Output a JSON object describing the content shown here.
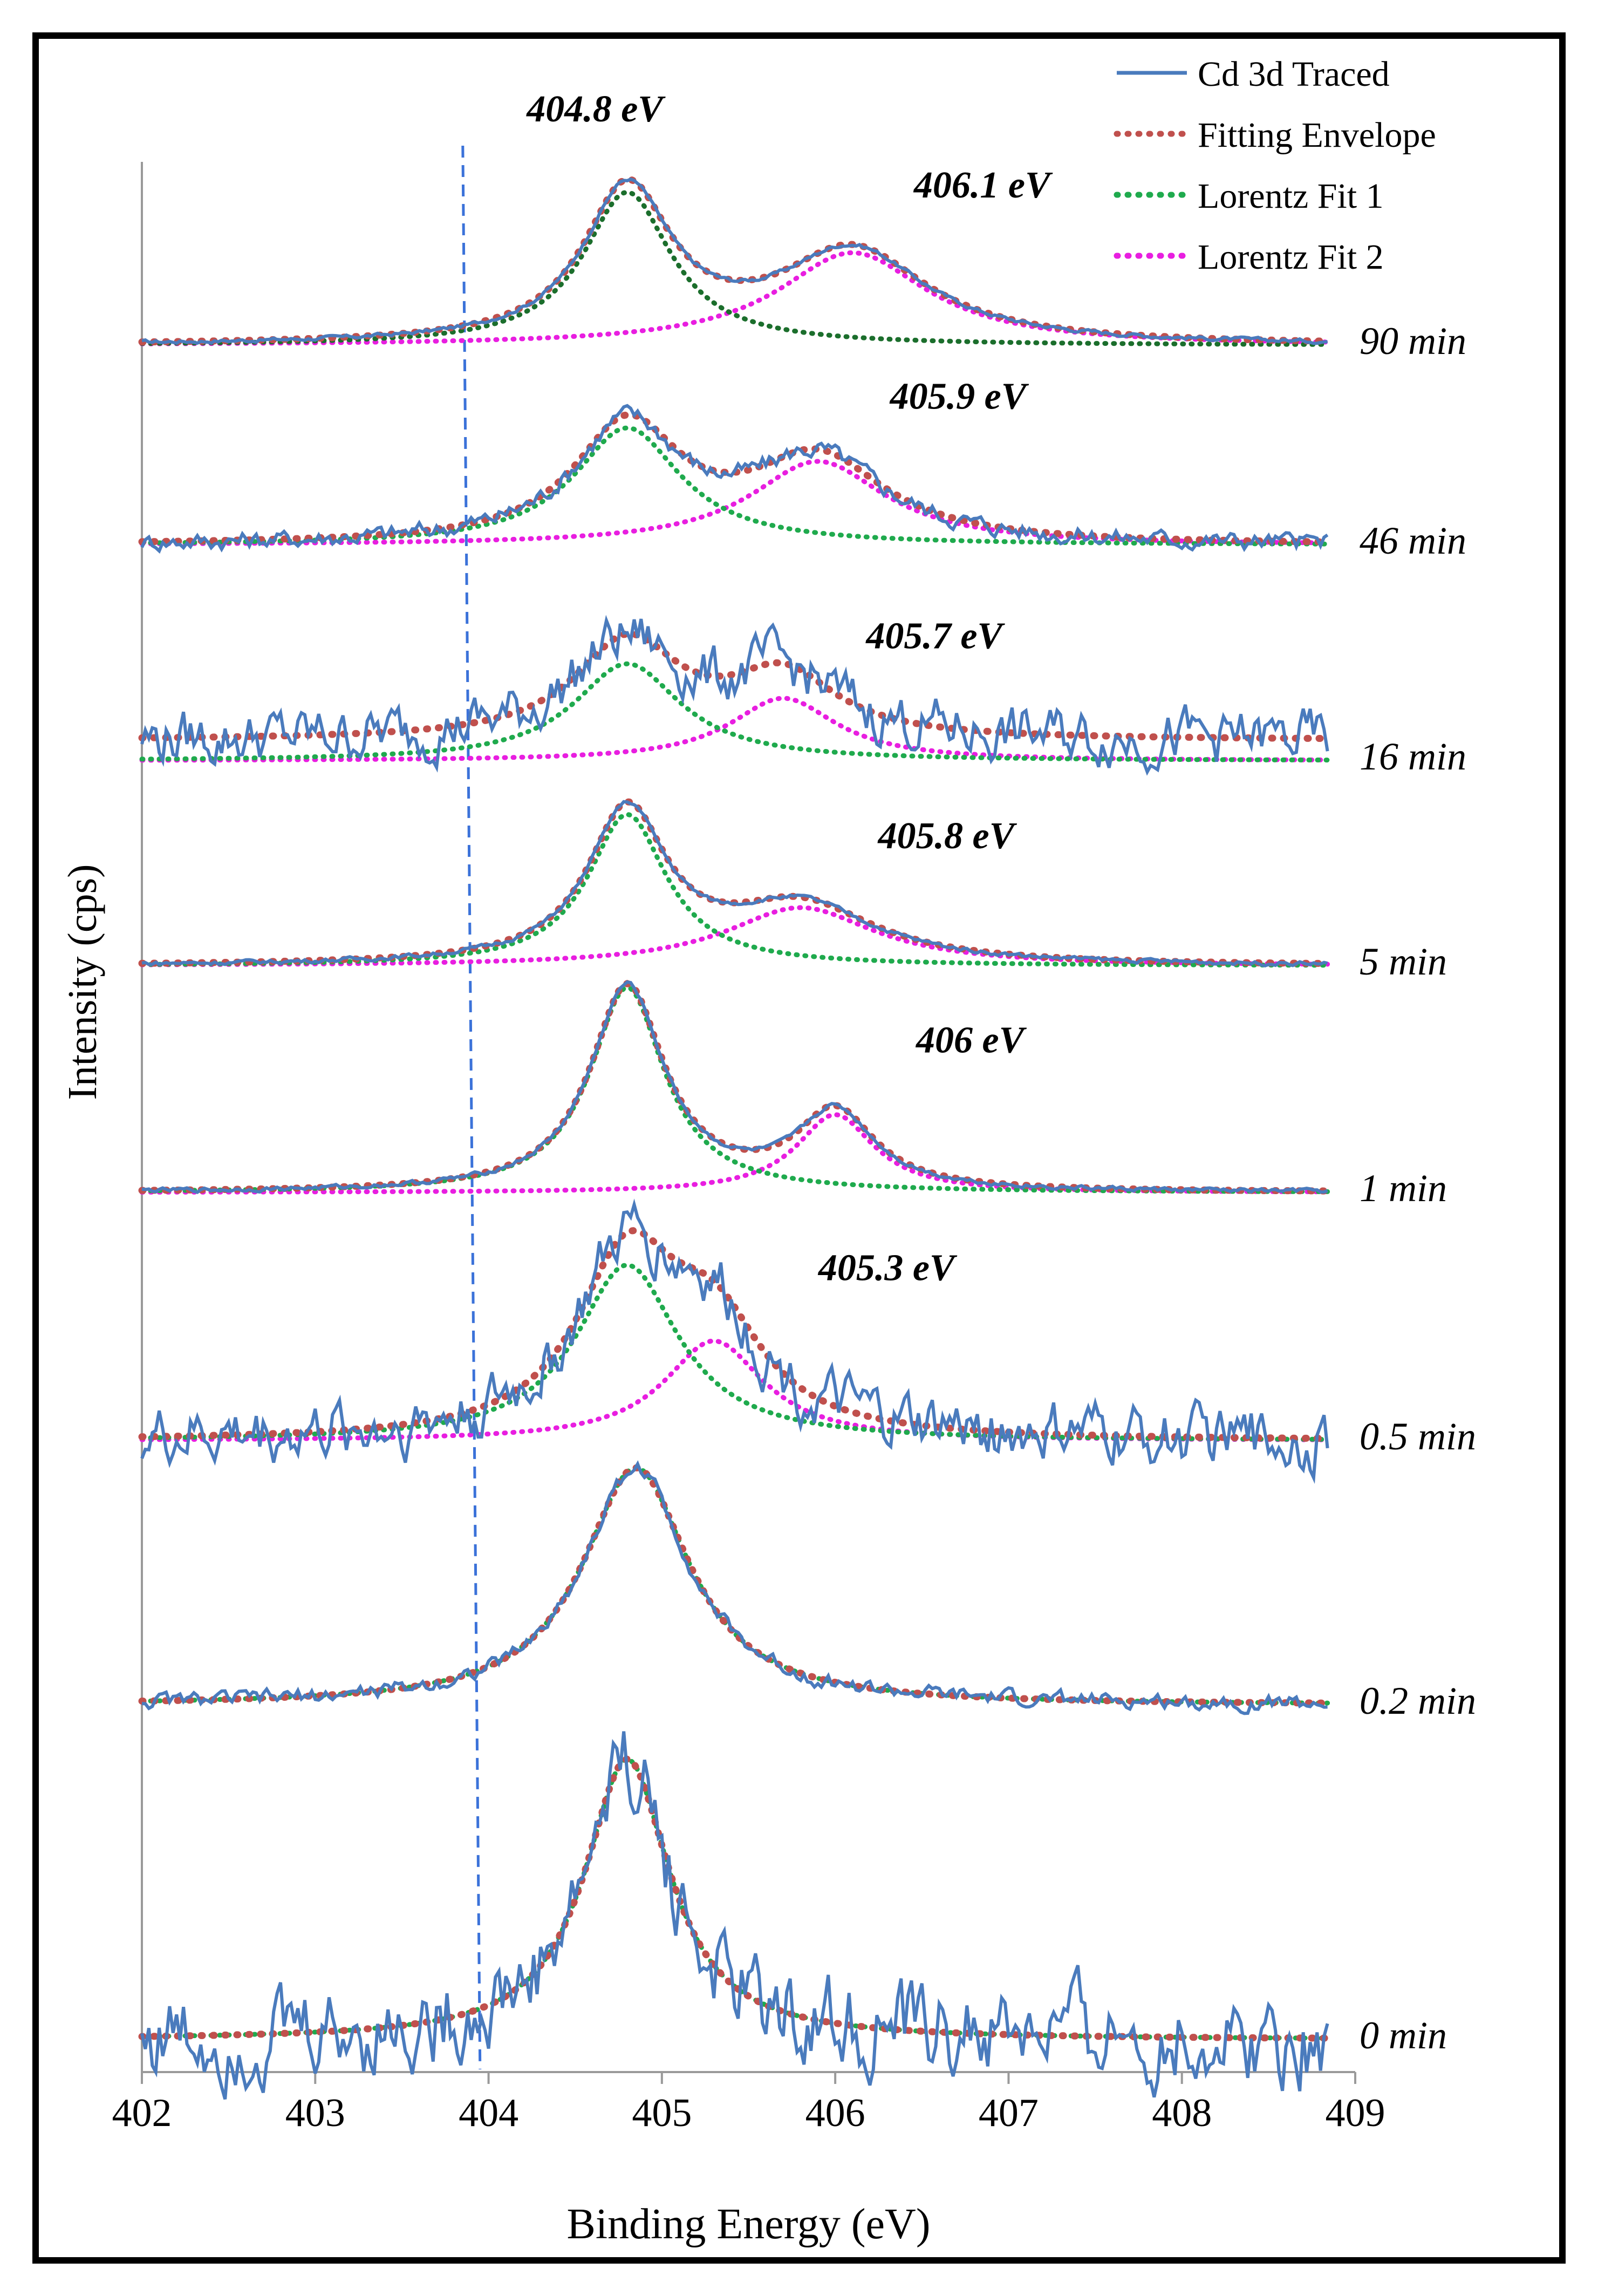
{
  "chart_data": {
    "type": "line",
    "xlabel": "Binding Energy (eV)",
    "ylabel": "Intensity (cps)",
    "xlim": [
      402,
      409
    ],
    "x_ticks": [
      "402",
      "403",
      "404",
      "405",
      "406",
      "407",
      "408",
      "409"
    ],
    "reference_line_x": 403.87,
    "legend_position": "top-right",
    "legend": [
      {
        "name": "Cd 3d Traced",
        "color": "#4a7bbd",
        "style": "solid"
      },
      {
        "name": "Fitting Envelope",
        "color": "#c0504d",
        "style": "dotted"
      },
      {
        "name": "Lorentz Fit 1",
        "color": "#1faa4d",
        "style": "dotted"
      },
      {
        "name": "Lorentz Fit 2",
        "color": "#e81ee0",
        "style": "dotted"
      }
    ],
    "panels": [
      {
        "label": "90 min",
        "peak1_center": 404.8,
        "peak2_center": 406.1,
        "peak1_label": "404.8 eV",
        "peak2_label": "406.1 eV",
        "baseline": 0.0,
        "peak1_height": 0.86,
        "peak1_width": 0.62,
        "peak2_height": 0.52,
        "peak2_width": 1.05,
        "noise": 0.02,
        "fit1_color": "#1b6e2c"
      },
      {
        "label": "46 min",
        "peak1_center": 404.8,
        "peak2_center": 405.9,
        "peak2_label": "405.9 eV",
        "baseline": 0.0,
        "peak1_height": 0.7,
        "peak1_width": 0.75,
        "peak2_height": 0.5,
        "peak2_width": 0.95,
        "noise": 0.1
      },
      {
        "label": "16 min",
        "peak1_center": 404.8,
        "peak2_center": 405.7,
        "peak2_label": "405.7 eV",
        "baseline": 0.22,
        "peak1_height": 0.62,
        "peak1_width": 0.75,
        "peak2_height": 0.4,
        "peak2_width": 0.75,
        "noise": 0.32
      },
      {
        "label": "5 min",
        "peak1_center": 404.8,
        "peak2_center": 405.8,
        "peak2_label": "405.8 eV",
        "baseline": 0.0,
        "peak1_height": 0.78,
        "peak1_width": 0.55,
        "peak2_height": 0.3,
        "peak2_width": 1.05,
        "noise": 0.02
      },
      {
        "label": "1 min",
        "peak1_center": 404.8,
        "peak2_center": 406.0,
        "peak2_label": "406 eV",
        "baseline": 0.0,
        "peak1_height": 1.0,
        "peak1_width": 0.52,
        "peak2_height": 0.38,
        "peak2_width": 0.55,
        "noise": 0.02
      },
      {
        "label": "0.5 min",
        "peak1_center": 404.8,
        "peak2_center": 405.3,
        "peak2_label": "405.3 eV",
        "baseline": 0.0,
        "peak1_height": 0.88,
        "peak1_width": 0.72,
        "peak2_height": 0.5,
        "peak2_width": 0.7,
        "noise": 0.28
      },
      {
        "label": "0.2 min",
        "peak1_center": 404.85,
        "baseline": 0.0,
        "peak1_height": 1.0,
        "peak1_width": 0.75,
        "noise": 0.06
      },
      {
        "label": "0 min",
        "peak1_center": 404.8,
        "baseline": 0.0,
        "peak1_height": 1.0,
        "peak1_width": 0.6,
        "noise": 0.3
      }
    ]
  }
}
